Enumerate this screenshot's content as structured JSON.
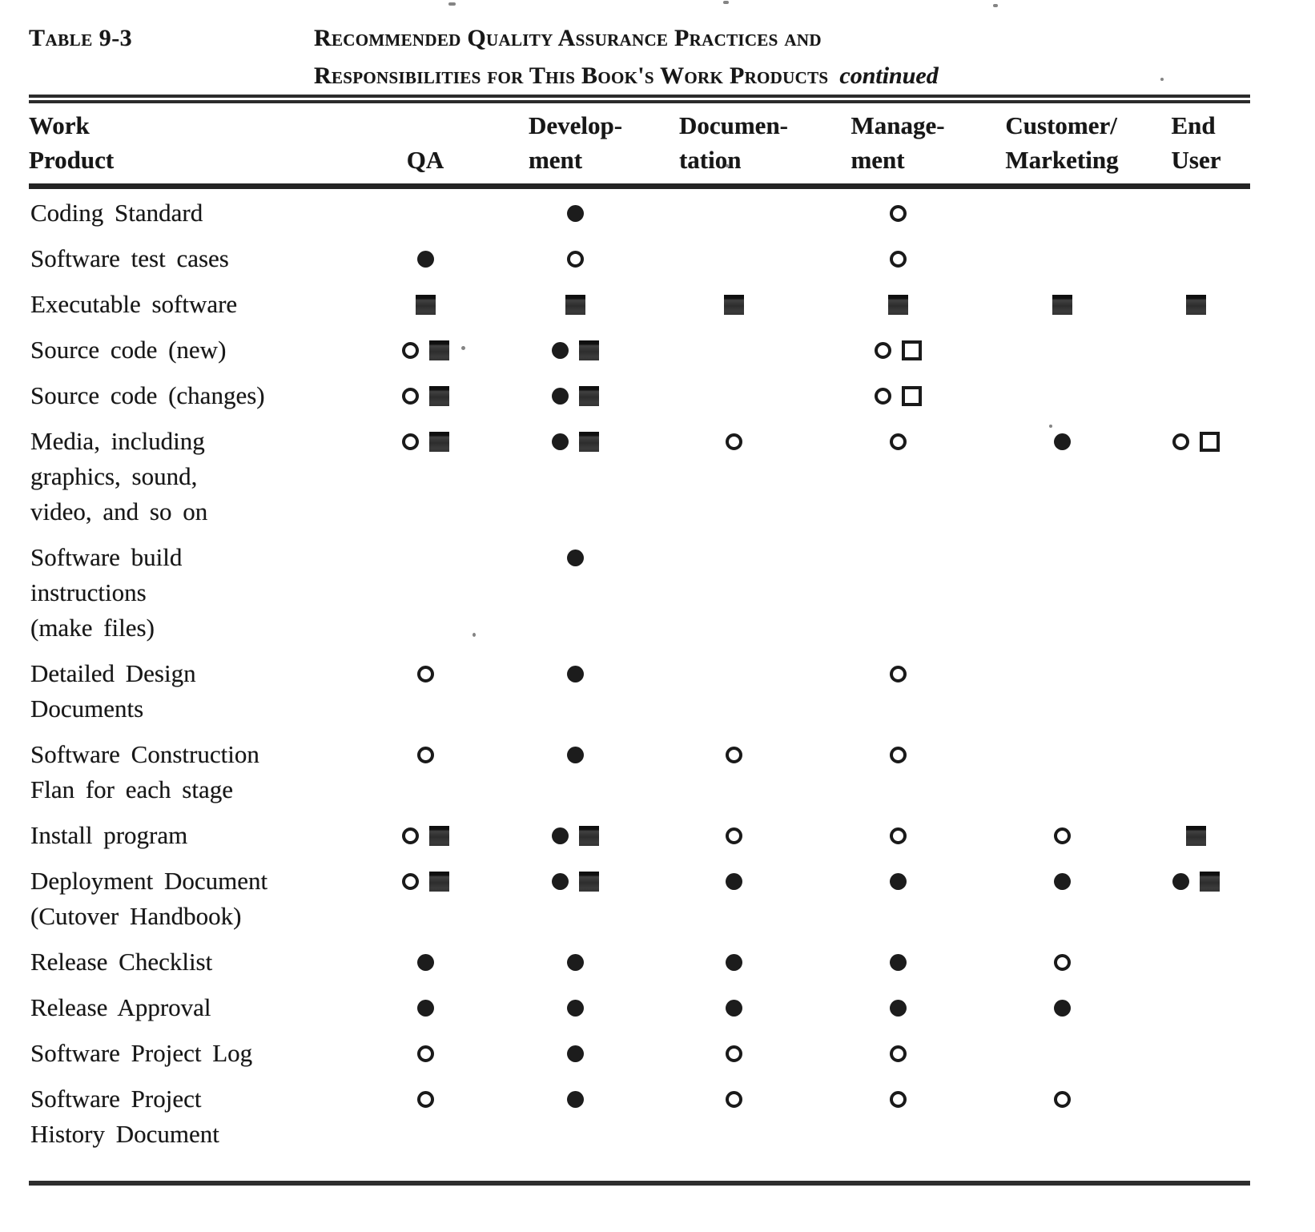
{
  "caption": {
    "table_number": "Table 9-3",
    "line1": "Recommended Quality Assurance Practices and",
    "line2": "Responsibilities for This Book's Work Products",
    "continued": "continued"
  },
  "symbols": {
    "fc": "filled-circle",
    "oc": "open-circle",
    "fs": "filled-square",
    "os": "open-square"
  },
  "table": {
    "columns": [
      {
        "id": "work_product",
        "label_lines": [
          "Work",
          "Product"
        ]
      },
      {
        "id": "qa",
        "label_lines": [
          "QA"
        ]
      },
      {
        "id": "development",
        "label_lines": [
          "Develop-",
          "ment"
        ]
      },
      {
        "id": "documentation",
        "label_lines": [
          "Documen-",
          "tation"
        ]
      },
      {
        "id": "management",
        "label_lines": [
          "Manage-",
          "ment"
        ]
      },
      {
        "id": "customer_marketing",
        "label_lines": [
          "Customer/",
          "Marketing"
        ]
      },
      {
        "id": "end_user",
        "label_lines": [
          "End",
          "User"
        ]
      }
    ],
    "rows": [
      {
        "label_lines": [
          "Coding Standard"
        ],
        "cells": {
          "development": [
            "fc"
          ],
          "management": [
            "oc"
          ]
        }
      },
      {
        "label_lines": [
          "Software test cases"
        ],
        "cells": {
          "qa": [
            "fc"
          ],
          "development": [
            "oc"
          ],
          "management": [
            "oc"
          ]
        }
      },
      {
        "label_lines": [
          "Executable software"
        ],
        "cells": {
          "qa": [
            "fs"
          ],
          "development": [
            "fs"
          ],
          "documentation": [
            "fs"
          ],
          "management": [
            "fs"
          ],
          "customer_marketing": [
            "fs"
          ],
          "end_user": [
            "fs"
          ]
        }
      },
      {
        "label_lines": [
          "Source code (new)"
        ],
        "cells": {
          "qa": [
            "oc",
            "fs"
          ],
          "development": [
            "fc",
            "fs"
          ],
          "management": [
            "oc",
            "os"
          ]
        }
      },
      {
        "label_lines": [
          "Source code (changes)"
        ],
        "cells": {
          "qa": [
            "oc",
            "fs"
          ],
          "development": [
            "fc",
            "fs"
          ],
          "management": [
            "oc",
            "os"
          ]
        }
      },
      {
        "label_lines": [
          "Media, including",
          "graphics, sound,",
          "video, and so on"
        ],
        "cells": {
          "qa": [
            "oc",
            "fs"
          ],
          "development": [
            "fc",
            "fs"
          ],
          "documentation": [
            "oc"
          ],
          "management": [
            "oc"
          ],
          "customer_marketing": [
            "fc"
          ],
          "end_user": [
            "oc",
            "os"
          ]
        }
      },
      {
        "label_lines": [
          "Software build",
          "instructions",
          "(make files)"
        ],
        "cells": {
          "development": [
            "fc"
          ]
        }
      },
      {
        "label_lines": [
          "Detailed Design",
          "Documents"
        ],
        "cells": {
          "qa": [
            "oc"
          ],
          "development": [
            "fc"
          ],
          "management": [
            "oc"
          ]
        }
      },
      {
        "label_lines": [
          "Software Construction",
          "Flan for each stage"
        ],
        "cells": {
          "qa": [
            "oc"
          ],
          "development": [
            "fc"
          ],
          "documentation": [
            "oc"
          ],
          "management": [
            "oc"
          ]
        }
      },
      {
        "label_lines": [
          "Install program"
        ],
        "cells": {
          "qa": [
            "oc",
            "fs"
          ],
          "development": [
            "fc",
            "fs"
          ],
          "documentation": [
            "oc"
          ],
          "management": [
            "oc"
          ],
          "customer_marketing": [
            "oc"
          ],
          "end_user": [
            "fs"
          ]
        }
      },
      {
        "label_lines": [
          "Deployment Document",
          "(Cutover Handbook)"
        ],
        "cells": {
          "qa": [
            "oc",
            "fs"
          ],
          "development": [
            "fc",
            "fs"
          ],
          "documentation": [
            "fc"
          ],
          "management": [
            "fc"
          ],
          "customer_marketing": [
            "fc"
          ],
          "end_user": [
            "fc",
            "fs"
          ]
        }
      },
      {
        "label_lines": [
          "Release Checklist"
        ],
        "cells": {
          "qa": [
            "fc"
          ],
          "development": [
            "fc"
          ],
          "documentation": [
            "fc"
          ],
          "management": [
            "fc"
          ],
          "customer_marketing": [
            "oc"
          ]
        }
      },
      {
        "label_lines": [
          "Release Approval"
        ],
        "cells": {
          "qa": [
            "fc"
          ],
          "development": [
            "fc"
          ],
          "documentation": [
            "fc"
          ],
          "management": [
            "fc"
          ],
          "customer_marketing": [
            "fc"
          ]
        }
      },
      {
        "label_lines": [
          "Software Project Log"
        ],
        "cells": {
          "qa": [
            "oc"
          ],
          "development": [
            "fc"
          ],
          "documentation": [
            "oc"
          ],
          "management": [
            "oc"
          ]
        }
      },
      {
        "label_lines": [
          "Software Project",
          "History Document"
        ],
        "cells": {
          "qa": [
            "oc"
          ],
          "development": [
            "fc"
          ],
          "documentation": [
            "oc"
          ],
          "management": [
            "oc"
          ],
          "customer_marketing": [
            "oc"
          ]
        }
      }
    ]
  }
}
